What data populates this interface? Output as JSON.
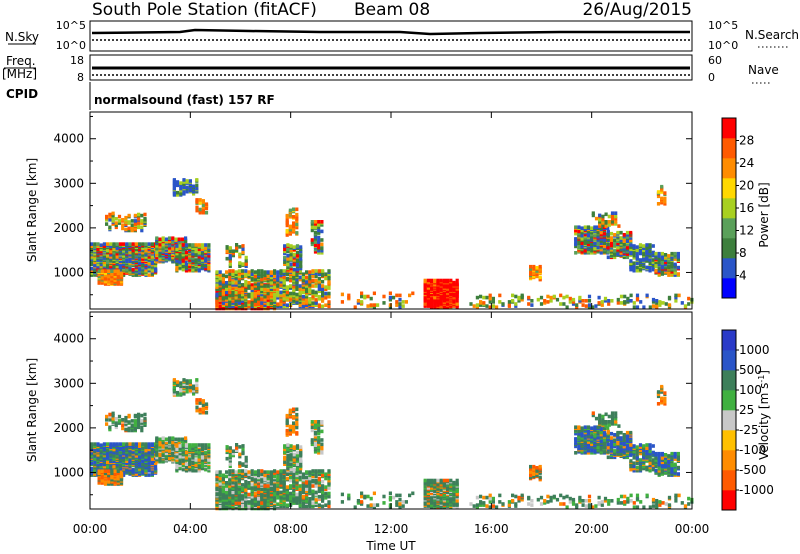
{
  "header": {
    "station": "South Pole Station (fitACF)",
    "beam": "Beam 08",
    "date": "26/Aug/2015"
  },
  "summary_panels": {
    "nsky": {
      "label": "N.Sky",
      "ticks": [
        "10^5",
        "10^0"
      ]
    },
    "nsearch": {
      "label": "N.Search",
      "ticks": [
        "10^5",
        "10^0"
      ]
    },
    "freq": {
      "label_top": "Freq.",
      "label_bottom": "[MHz]",
      "ticks": [
        "18",
        "8"
      ]
    },
    "nave": {
      "label": "Nave",
      "ticks": [
        "60",
        "0"
      ]
    },
    "cpid": {
      "label": "CPID",
      "value": "normalsound (fast) 157 RF"
    }
  },
  "colors": {
    "power": [
      "#0000ff",
      "#2a55c8",
      "#3d7f3d",
      "#5aa05a",
      "#a8d020",
      "#ffd800",
      "#ff8c00",
      "#ff5a00",
      "#ff0000"
    ],
    "velocity": [
      "#ff0000",
      "#ff5a00",
      "#ff8c00",
      "#ffc000",
      "#c8c8c8",
      "#40b040",
      "#3d7f5a",
      "#2a55c8",
      "#2a3ac8"
    ]
  },
  "chart_data": [
    {
      "type": "heatmap",
      "name": "power",
      "ylabel": "Slant Range [km]",
      "ylim": [
        180,
        4600
      ],
      "yticks": [
        "4000",
        "3000",
        "2000",
        "1000"
      ],
      "colorbar_label": "Power [dB]",
      "colorbar_ticks": [
        "28",
        "24",
        "20",
        "16",
        "12",
        "8",
        "4"
      ],
      "colorbar_range": [
        0,
        32
      ]
    },
    {
      "type": "heatmap",
      "name": "velocity",
      "ylabel": "Slant Range [km]",
      "xlabel": "Time UT",
      "ylim": [
        180,
        4600
      ],
      "yticks": [
        "4000",
        "3000",
        "2000",
        "1000"
      ],
      "xticks": [
        "00:00",
        "04:00",
        "08:00",
        "12:00",
        "16:00",
        "20:00",
        "00:00"
      ],
      "xlim": [
        0,
        24
      ],
      "colorbar_label": "Velocity [m s^-1]",
      "colorbar_ticks": [
        "1000",
        "500",
        "100",
        "25",
        "-25",
        "-100",
        "-500",
        "-1000"
      ]
    }
  ]
}
